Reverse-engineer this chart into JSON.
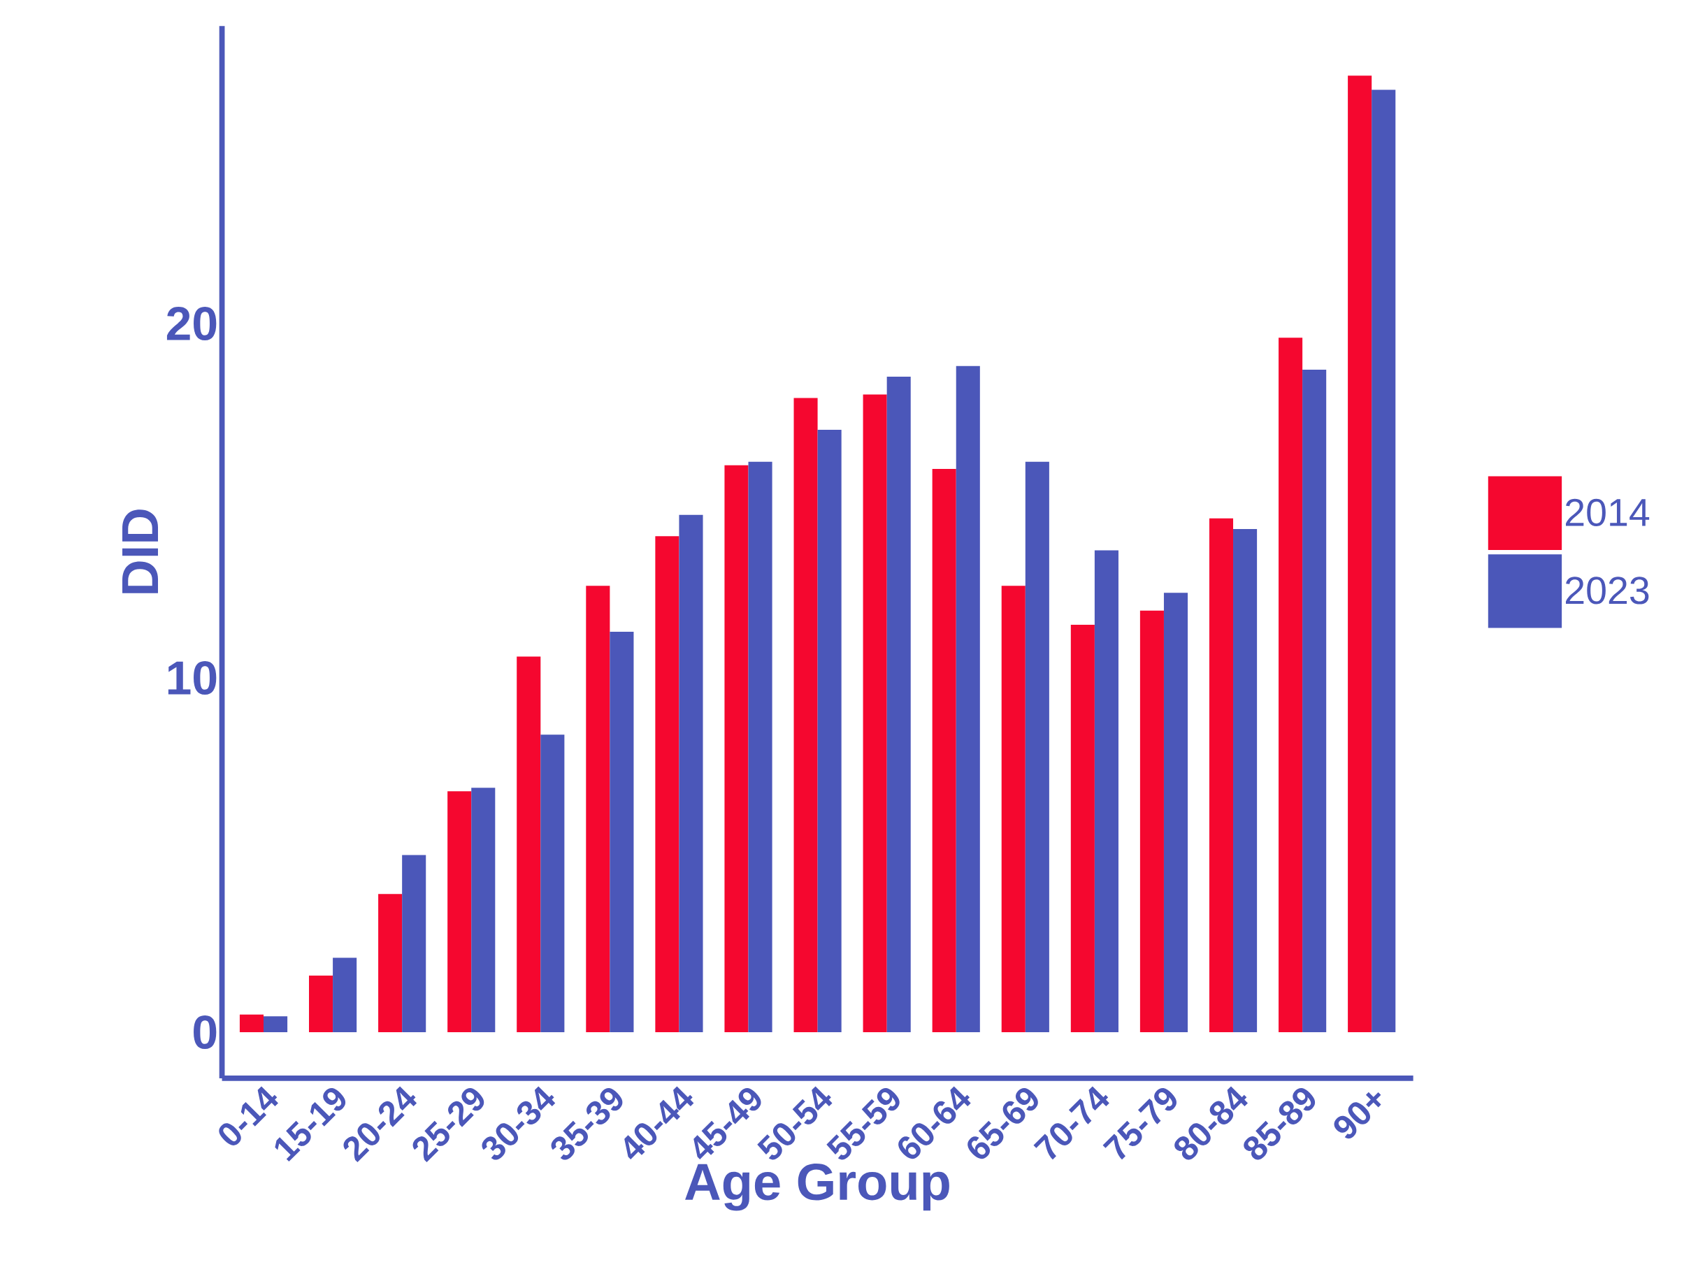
{
  "chart_data": {
    "type": "bar",
    "xlabel": "Age Group",
    "ylabel": "DID",
    "categories": [
      "0-14",
      "15-19",
      "20-24",
      "25-29",
      "30-34",
      "35-39",
      "40-44",
      "45-49",
      "50-54",
      "55-59",
      "60-64",
      "65-69",
      "70-74",
      "75-79",
      "80-84",
      "85-89",
      "90+"
    ],
    "series": [
      {
        "name": "2014",
        "color": "#f5072f",
        "values": [
          0.5,
          1.6,
          3.9,
          6.8,
          10.6,
          12.6,
          14.0,
          16.0,
          17.9,
          18.0,
          15.9,
          12.6,
          11.5,
          11.9,
          14.5,
          19.6,
          27.0
        ]
      },
      {
        "name": "2023",
        "color": "#4b57b9",
        "values": [
          0.45,
          2.1,
          5.0,
          6.9,
          8.4,
          11.3,
          14.6,
          16.1,
          17.0,
          18.5,
          18.8,
          16.1,
          13.6,
          12.4,
          14.2,
          18.7,
          26.6
        ]
      }
    ],
    "ylim": [
      -1.3,
      28.4
    ],
    "yticks": [
      0,
      10,
      20
    ],
    "legend": "right",
    "grid": false
  }
}
